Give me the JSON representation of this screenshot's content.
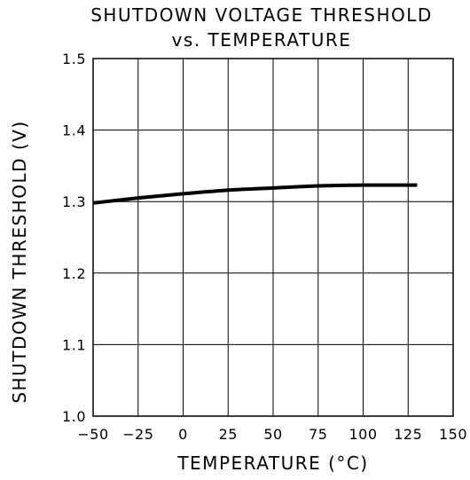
{
  "chart_data": {
    "type": "line",
    "title": "SHUTDOWN VOLTAGE THRESHOLD",
    "subtitle": "vs. TEMPERATURE",
    "xlabel": "TEMPERATURE (°C)",
    "ylabel": "SHUTDOWN THRESHOLD (V)",
    "xlim": [
      -50,
      150
    ],
    "ylim": [
      1.0,
      1.5
    ],
    "x_ticks": [
      -50,
      -25,
      0,
      25,
      50,
      75,
      100,
      125,
      150
    ],
    "y_ticks": [
      1.0,
      1.1,
      1.2,
      1.3,
      1.4,
      1.5
    ],
    "x_tick_labels": [
      "−50",
      "−25",
      "0",
      "25",
      "50",
      "75",
      "100",
      "125",
      "150"
    ],
    "y_tick_labels": [
      "1.0",
      "1.1",
      "1.2",
      "1.3",
      "1.4",
      "1.5"
    ],
    "grid": true,
    "series": [
      {
        "x": [
          -50,
          -25,
          0,
          25,
          50,
          75,
          100,
          125,
          130
        ],
        "y": [
          1.298,
          1.305,
          1.311,
          1.316,
          1.319,
          1.322,
          1.323,
          1.323,
          1.323
        ]
      }
    ],
    "colors": {
      "line": "#000000",
      "grid": "#000000",
      "background": "#ffffff"
    }
  }
}
